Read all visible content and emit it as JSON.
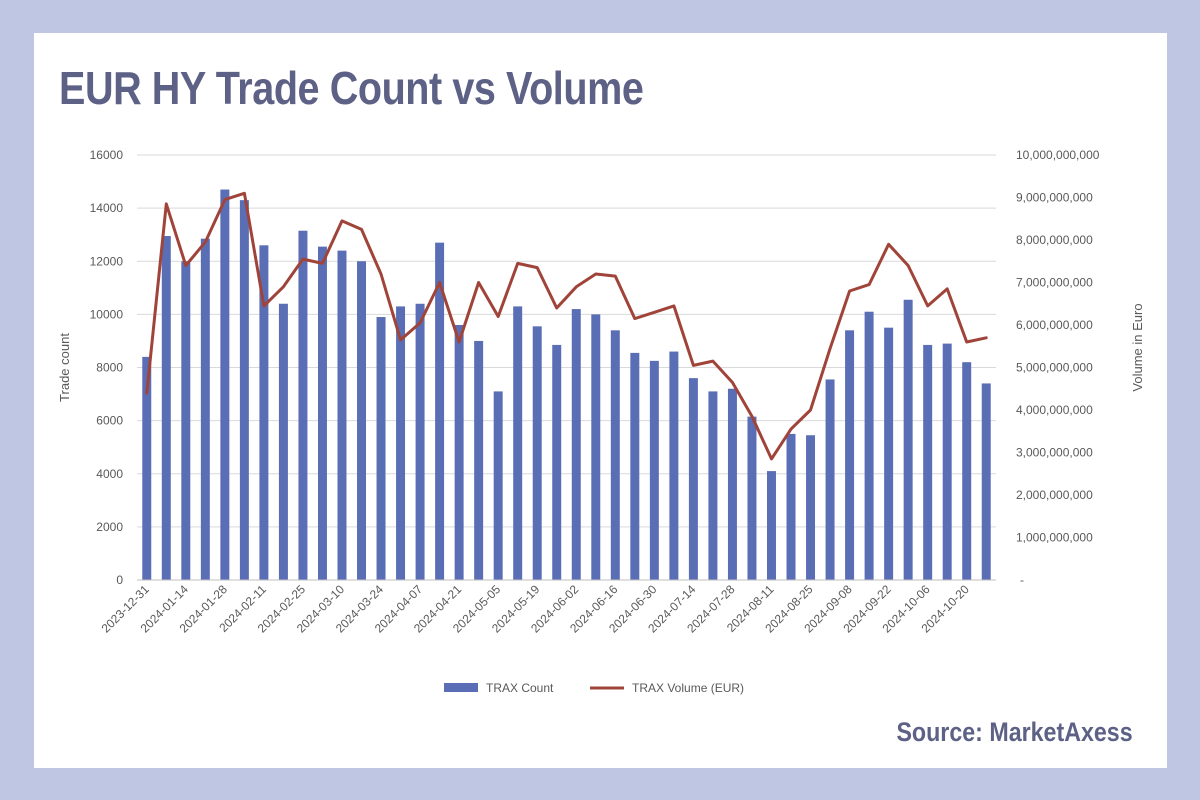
{
  "header": {
    "title": "EUR HY Trade Count vs Volume"
  },
  "footer": {
    "source": "Source: MarketAxess"
  },
  "colors": {
    "page_background": "#bfc6e3",
    "title": "#5d6185",
    "bars": "#5a6eb5",
    "line": "#a0443a",
    "grid": "#d9d9d9"
  },
  "chart_data": {
    "type": "bar",
    "title": "",
    "categories": [
      "2023-12-31",
      "2024-01-07",
      "2024-01-14",
      "2024-01-21",
      "2024-01-28",
      "2024-02-04",
      "2024-02-11",
      "2024-02-18",
      "2024-02-25",
      "2024-03-03",
      "2024-03-10",
      "2024-03-17",
      "2024-03-24",
      "2024-03-31",
      "2024-04-07",
      "2024-04-14",
      "2024-04-21",
      "2024-04-28",
      "2024-05-05",
      "2024-05-12",
      "2024-05-19",
      "2024-05-26",
      "2024-06-02",
      "2024-06-09",
      "2024-06-16",
      "2024-06-23",
      "2024-06-30",
      "2024-07-07",
      "2024-07-14",
      "2024-07-21",
      "2024-07-28",
      "2024-08-04",
      "2024-08-11",
      "2024-08-18",
      "2024-08-25",
      "2024-09-01",
      "2024-09-08",
      "2024-09-15",
      "2024-09-22",
      "2024-09-29",
      "2024-10-06",
      "2024-10-13",
      "2024-10-20",
      "2024-10-27"
    ],
    "x_tick_labels": [
      "2023-12-31",
      "2024-01-14",
      "2024-01-28",
      "2024-02-11",
      "2024-02-25",
      "2024-03-10",
      "2024-03-24",
      "2024-04-07",
      "2024-04-21",
      "2024-05-05",
      "2024-05-19",
      "2024-06-02",
      "2024-06-16",
      "2024-06-30",
      "2024-07-14",
      "2024-07-28",
      "2024-08-11",
      "2024-08-25",
      "2024-09-08",
      "2024-09-22",
      "2024-10-06",
      "2024-10-20"
    ],
    "series": [
      {
        "name": "TRAX Count",
        "type": "bar",
        "axis": "left",
        "values": [
          8400,
          12950,
          12000,
          12850,
          14700,
          14300,
          12600,
          10400,
          13150,
          12550,
          12400,
          12000,
          9900,
          10300,
          10400,
          12700,
          9600,
          9000,
          7100,
          10300,
          9550,
          8850,
          10200,
          10000,
          9400,
          8550,
          8250,
          8600,
          7600,
          7100,
          7200,
          6150,
          4100,
          5500,
          5450,
          7550,
          9400,
          10100,
          9500,
          10550,
          8850,
          8900,
          8200,
          7400
        ]
      },
      {
        "name": "TRAX Volume (EUR)",
        "type": "line",
        "axis": "right",
        "values": [
          4400000000,
          8850000000,
          7400000000,
          7950000000,
          8950000000,
          9100000000,
          6450000000,
          6900000000,
          7550000000,
          7450000000,
          8450000000,
          8250000000,
          7200000000,
          5650000000,
          6050000000,
          7000000000,
          5600000000,
          7000000000,
          6200000000,
          7450000000,
          7350000000,
          6400000000,
          6900000000,
          7200000000,
          7150000000,
          6150000000,
          6300000000,
          6450000000,
          5050000000,
          5150000000,
          4650000000,
          3850000000,
          2850000000,
          3550000000,
          4000000000,
          5450000000,
          6800000000,
          6950000000,
          7900000000,
          7400000000,
          6450000000,
          6850000000,
          5600000000,
          5700000000
        ]
      }
    ],
    "y_left": {
      "label": "Trade count",
      "min": 0,
      "max": 16000,
      "step": 2000,
      "tick_labels": [
        "0",
        "2000",
        "4000",
        "6000",
        "8000",
        "10000",
        "12000",
        "14000",
        "16000"
      ]
    },
    "y_right": {
      "label": "Volume in Euro",
      "min": 0,
      "max": 10000000000,
      "step": 1000000000,
      "tick_labels": [
        "-",
        "1,000,000,000",
        "2,000,000,000",
        "3,000,000,000",
        "4,000,000,000",
        "5,000,000,000",
        "6,000,000,000",
        "7,000,000,000",
        "8,000,000,000",
        "9,000,000,000",
        "10,000,000,000"
      ]
    },
    "grid": true,
    "legend_position": "bottom"
  }
}
